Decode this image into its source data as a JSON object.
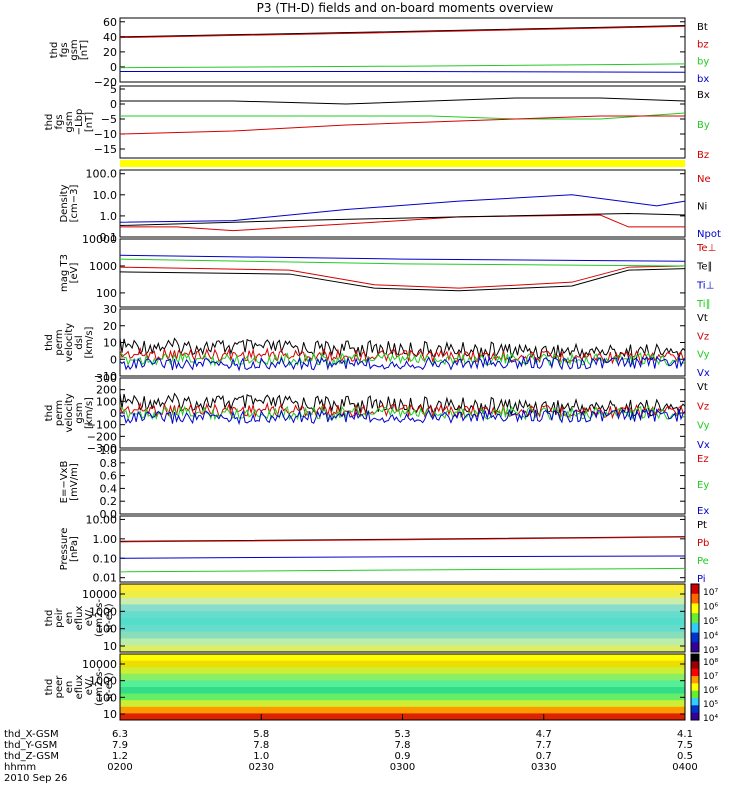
{
  "title": "P3 (TH-D) fields and on-board moments overview",
  "colors": {
    "black": "#000000",
    "red": "#d40000",
    "green": "#22cc22",
    "blue": "#0000cc",
    "yellow": "#ffff00"
  },
  "chart_data": [
    {
      "type": "line",
      "name": "panel-fgs-gsm",
      "ylabel": [
        "thd",
        "fgs",
        "gsm",
        "[nT]"
      ],
      "yticks": [
        "60",
        "40",
        "20",
        "0",
        "−20"
      ],
      "ylim": [
        -20,
        65
      ],
      "series": [
        {
          "name": "Bt",
          "color": "black",
          "x": [
            0,
            0.5,
            1
          ],
          "y": [
            40,
            47,
            55
          ]
        },
        {
          "name": "bz",
          "color": "red",
          "x": [
            0,
            0.5,
            1
          ],
          "y": [
            39,
            46,
            54
          ]
        },
        {
          "name": "by",
          "color": "green",
          "x": [
            0,
            0.5,
            1
          ],
          "y": [
            -1,
            1,
            4
          ]
        },
        {
          "name": "bx",
          "color": "blue",
          "x": [
            0,
            0.5,
            1
          ],
          "y": [
            -6,
            -6,
            -7
          ]
        }
      ]
    },
    {
      "type": "line",
      "name": "panel-fgs-dsl",
      "ylabel": [
        "thd",
        "fgs",
        "gsm",
        "−Lbp",
        "[nT]"
      ],
      "yticks": [
        "5",
        "0",
        "−5",
        "−10",
        "−15"
      ],
      "ylim": [
        -18,
        6
      ],
      "series": [
        {
          "name": "Bx",
          "color": "black",
          "x": [
            0,
            0.2,
            0.4,
            0.55,
            0.7,
            0.85,
            1
          ],
          "y": [
            1,
            1,
            0,
            1,
            2,
            2,
            1
          ]
        },
        {
          "name": "By",
          "color": "green",
          "x": [
            0,
            0.2,
            0.4,
            0.55,
            0.7,
            0.85,
            1
          ],
          "y": [
            -4,
            -4,
            -4,
            -4,
            -5,
            -5,
            -3
          ]
        },
        {
          "name": "Bz",
          "color": "red",
          "x": [
            0,
            0.2,
            0.4,
            0.55,
            0.7,
            0.85,
            1
          ],
          "y": [
            -10,
            -9,
            -7,
            -6,
            -5,
            -4,
            -4
          ]
        }
      ]
    },
    {
      "type": "line",
      "name": "panel-density",
      "ylabel": [
        "Density",
        "[cm−3]"
      ],
      "yticks": [
        "100.0",
        "10.0",
        "1.0",
        "0.1"
      ],
      "ylog": true,
      "ylim": [
        0.1,
        150
      ],
      "series": [
        {
          "name": "Ne",
          "color": "red",
          "x": [
            0,
            0.1,
            0.2,
            0.45,
            0.6,
            0.85,
            0.9,
            1
          ],
          "y": [
            0.3,
            0.3,
            0.2,
            0.5,
            0.9,
            1.1,
            0.3,
            0.3
          ]
        },
        {
          "name": "Ni",
          "color": "black",
          "x": [
            0,
            0.3,
            0.6,
            0.9,
            1
          ],
          "y": [
            0.35,
            0.6,
            0.9,
            1.3,
            1.1
          ]
        },
        {
          "name": "Npot",
          "color": "blue",
          "x": [
            0,
            0.2,
            0.4,
            0.6,
            0.8,
            0.95,
            1
          ],
          "y": [
            0.5,
            0.6,
            2,
            5,
            10,
            3,
            5
          ]
        }
      ]
    },
    {
      "type": "line",
      "name": "panel-temperature",
      "ylabel": [
        "mag T3",
        "[eV]"
      ],
      "yticks": [
        "10000",
        "1000",
        "100"
      ],
      "ylog": true,
      "ylim": [
        30,
        10000
      ],
      "series": [
        {
          "name": "Te⊥",
          "color": "red",
          "x": [
            0,
            0.3,
            0.45,
            0.6,
            0.8,
            0.9,
            1
          ],
          "y": [
            900,
            700,
            200,
            150,
            250,
            900,
            1000
          ]
        },
        {
          "name": "Te∥",
          "color": "black",
          "x": [
            0,
            0.3,
            0.45,
            0.6,
            0.8,
            0.9,
            1
          ],
          "y": [
            600,
            500,
            150,
            120,
            180,
            700,
            800
          ]
        },
        {
          "name": "Ti⊥",
          "color": "blue",
          "x": [
            0,
            0.5,
            1
          ],
          "y": [
            2500,
            1800,
            1500
          ]
        },
        {
          "name": "Ti∥",
          "color": "green",
          "x": [
            0,
            0.5,
            1
          ],
          "y": [
            1800,
            1200,
            1000
          ]
        }
      ]
    },
    {
      "type": "line",
      "name": "panel-perm-velocity-dsl",
      "ylabel": [
        "thd",
        "perm",
        "velocity",
        "dsl",
        "[km/s]"
      ],
      "yticks": [
        "30",
        "20",
        "10",
        "0",
        "−10"
      ],
      "ylim": [
        -10,
        30
      ],
      "series": [
        {
          "name": "Vt",
          "color": "black",
          "x": [
            0,
            1
          ],
          "y": [
            8,
            4
          ]
        },
        {
          "name": "Vz",
          "color": "red",
          "x": [
            0,
            1
          ],
          "y": [
            3,
            1
          ]
        },
        {
          "name": "Vy",
          "color": "green",
          "x": [
            0,
            1
          ],
          "y": [
            0,
            0
          ]
        },
        {
          "name": "Vx",
          "color": "blue",
          "x": [
            0,
            1
          ],
          "y": [
            -3,
            -2
          ]
        }
      ]
    },
    {
      "type": "line",
      "name": "panel-perm-velocity-gsm",
      "ylabel": [
        "thd",
        "perm",
        "velocity",
        "gsm",
        "[km/s]"
      ],
      "yticks": [
        "300",
        "200",
        "100",
        "0",
        "−100",
        "−200",
        "−300"
      ],
      "ylim": [
        -300,
        300
      ],
      "series": [
        {
          "name": "Vt",
          "color": "black",
          "x": [
            0,
            1
          ],
          "y": [
            100,
            40
          ]
        },
        {
          "name": "Vz",
          "color": "red",
          "x": [
            0,
            1
          ],
          "y": [
            30,
            10
          ]
        },
        {
          "name": "Vy",
          "color": "green",
          "x": [
            0,
            1
          ],
          "y": [
            0,
            0
          ]
        },
        {
          "name": "Vx",
          "color": "blue",
          "x": [
            0,
            1
          ],
          "y": [
            -40,
            -20
          ]
        }
      ]
    },
    {
      "type": "line",
      "name": "panel-efield",
      "ylabel": [
        "E=−VxB",
        "[mV/m]"
      ],
      "yticks": [
        "1.0",
        "0.8",
        "0.6",
        "0.4",
        "0.2",
        "0.0"
      ],
      "ylim": [
        0,
        1
      ],
      "series": [
        {
          "name": "Ez",
          "color": "red",
          "x": [],
          "y": []
        },
        {
          "name": "Ey",
          "color": "green",
          "x": [],
          "y": []
        },
        {
          "name": "Ex",
          "color": "blue",
          "x": [],
          "y": []
        }
      ]
    },
    {
      "type": "line",
      "name": "panel-pressure",
      "ylabel": [
        "Pressure",
        "[nPa]"
      ],
      "yticks": [
        "10.00",
        "1.00",
        "0.10",
        "0.01"
      ],
      "ylog": true,
      "ylim": [
        0.006,
        15
      ],
      "series": [
        {
          "name": "Pt",
          "color": "black",
          "x": [
            0,
            0.5,
            1
          ],
          "y": [
            0.75,
            0.95,
            1.3
          ]
        },
        {
          "name": "Pb",
          "color": "red",
          "x": [
            0,
            0.5,
            1
          ],
          "y": [
            0.7,
            0.9,
            1.25
          ]
        },
        {
          "name": "Pe",
          "color": "green",
          "x": [
            0,
            0.5,
            1
          ],
          "y": [
            0.02,
            0.025,
            0.03
          ]
        },
        {
          "name": "Pi",
          "color": "blue",
          "x": [
            0,
            0.5,
            1
          ],
          "y": [
            0.1,
            0.12,
            0.13
          ]
        }
      ]
    },
    {
      "type": "heatmap",
      "name": "panel-peir-spectrogram",
      "ylabel": [
        "thd",
        "peir",
        "en",
        "eflux",
        "eV/",
        "(cm2-s-",
        "sr-eV)"
      ],
      "yticks": [
        "10000",
        "1000",
        "100",
        "10"
      ],
      "ylog": true,
      "colorbar_ticks": [
        "10⁷",
        "10⁶",
        "10⁵",
        "10⁴",
        "10³"
      ]
    },
    {
      "type": "heatmap",
      "name": "panel-peer-spectrogram",
      "ylabel": [
        "thd",
        "peer",
        "en",
        "eflux",
        "eV/",
        "(cm2-s-",
        "sr-eV)"
      ],
      "yticks": [
        "10000",
        "1000",
        "100",
        "10"
      ],
      "ylog": true,
      "colorbar_ticks": [
        "10⁸",
        "10⁷",
        "10⁶",
        "10⁵",
        "10⁴"
      ]
    }
  ],
  "xaxis": {
    "rows": [
      {
        "label": "thd_X-GSM",
        "values": [
          "6.3",
          "5.8",
          "5.3",
          "4.7",
          "4.1"
        ]
      },
      {
        "label": "thd_Y-GSM",
        "values": [
          "7.9",
          "7.8",
          "7.8",
          "7.7",
          "7.5"
        ]
      },
      {
        "label": "thd_Z-GSM",
        "values": [
          "1.2",
          "1.0",
          "0.9",
          "0.7",
          "0.5"
        ]
      },
      {
        "label": "hhmm",
        "values": [
          "0200",
          "0230",
          "0300",
          "0330",
          "0400"
        ]
      }
    ],
    "date": "2010 Sep 26"
  }
}
